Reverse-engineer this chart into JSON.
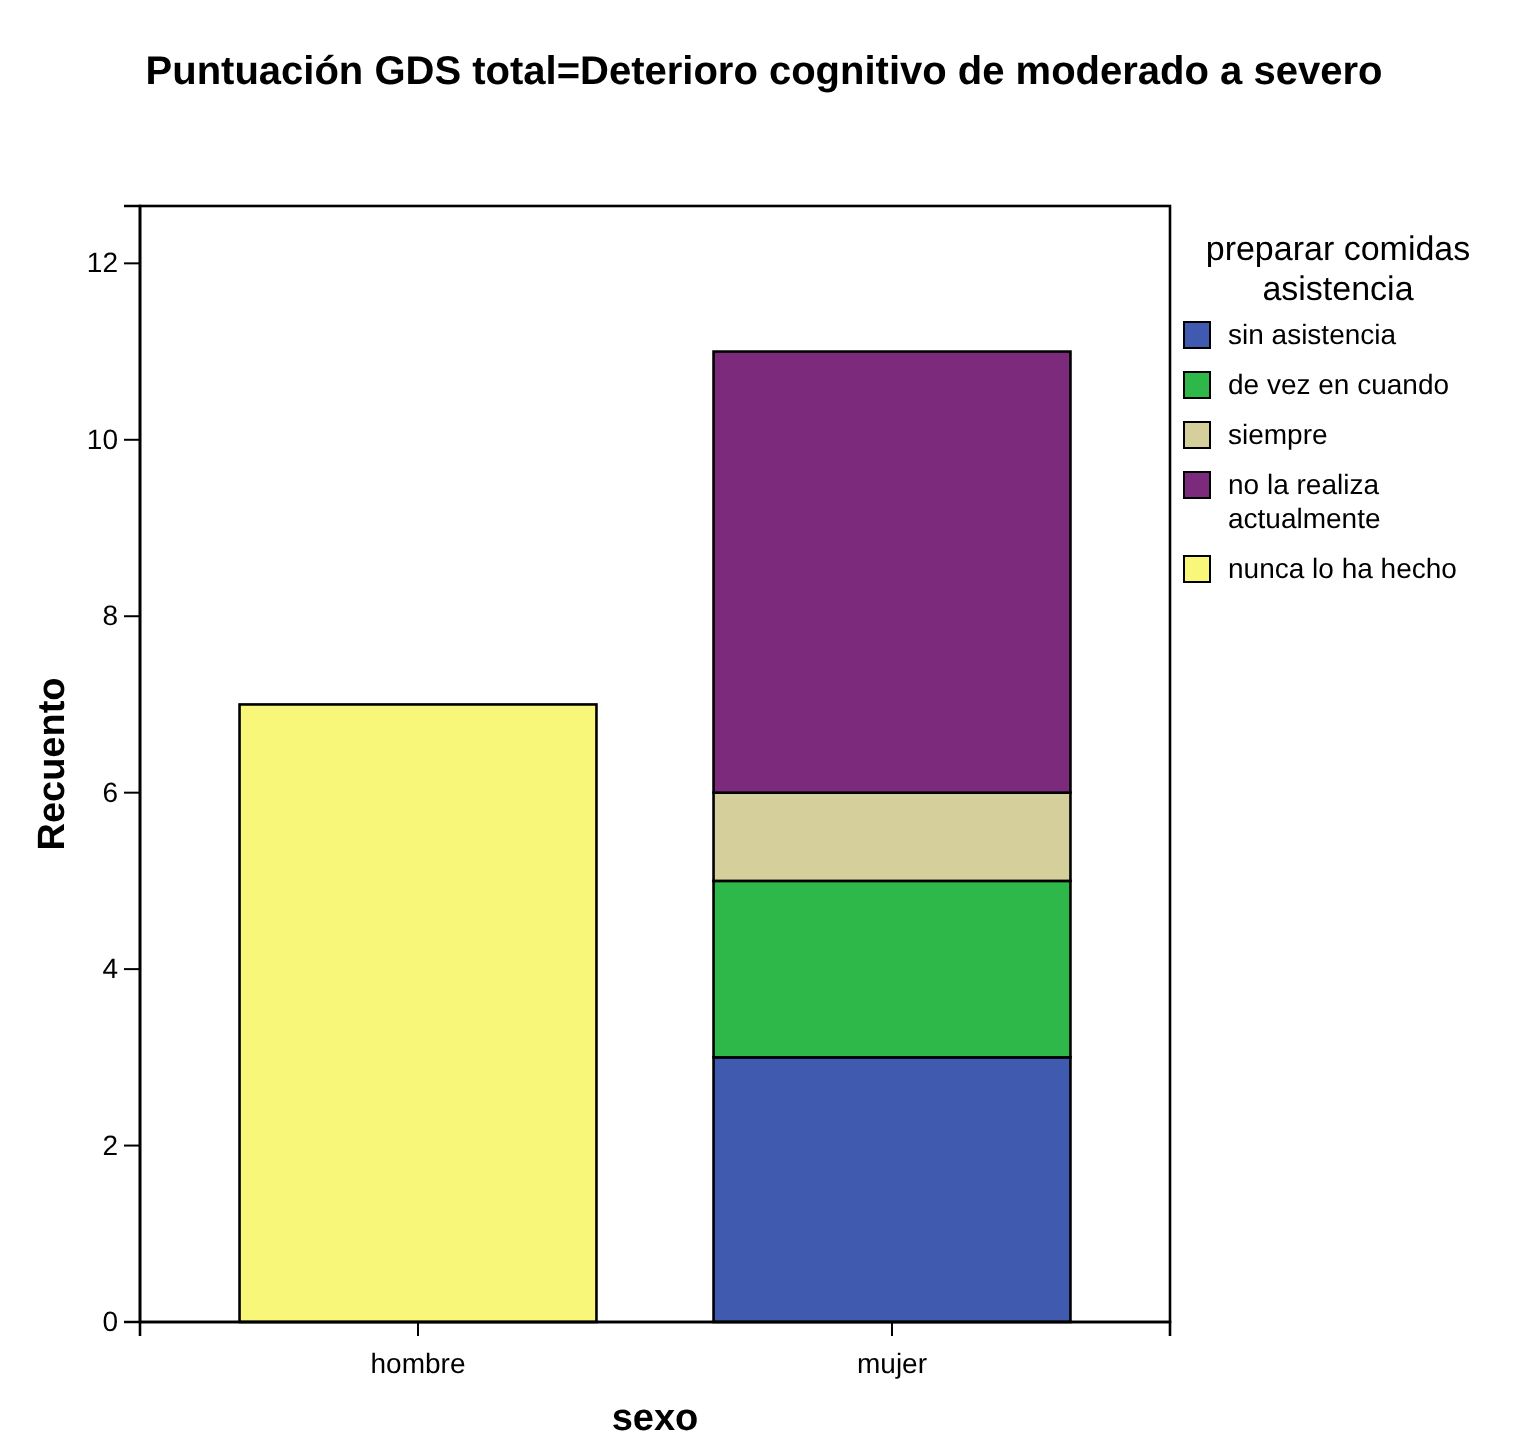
{
  "chart_data": {
    "type": "bar",
    "title": "Puntuación GDS total=Deterioro cognitivo de moderado a severo",
    "xlabel": "sexo",
    "ylabel": "Recuento",
    "legend_title": "preparar comidas asistencia",
    "categories": [
      "hombre",
      "mujer"
    ],
    "stacked": true,
    "ylim": [
      0,
      12.65
    ],
    "yticks": [
      0,
      2,
      4,
      6,
      8,
      10,
      12
    ],
    "grid": false,
    "legend": "right",
    "series": [
      {
        "name": "sin asistencia",
        "color": "#3f5aae",
        "values": [
          null,
          3
        ]
      },
      {
        "name": "de vez en cuando",
        "color": "#2fb84a",
        "values": [
          null,
          2
        ]
      },
      {
        "name": "siempre",
        "color": "#d4cf9b",
        "values": [
          null,
          1
        ]
      },
      {
        "name": "no la realiza actualmente",
        "color": "#7b2a7c",
        "values": [
          null,
          5
        ]
      },
      {
        "name": "nunca lo ha hecho",
        "color": "#f8f77a",
        "values": [
          7,
          null
        ]
      }
    ]
  }
}
